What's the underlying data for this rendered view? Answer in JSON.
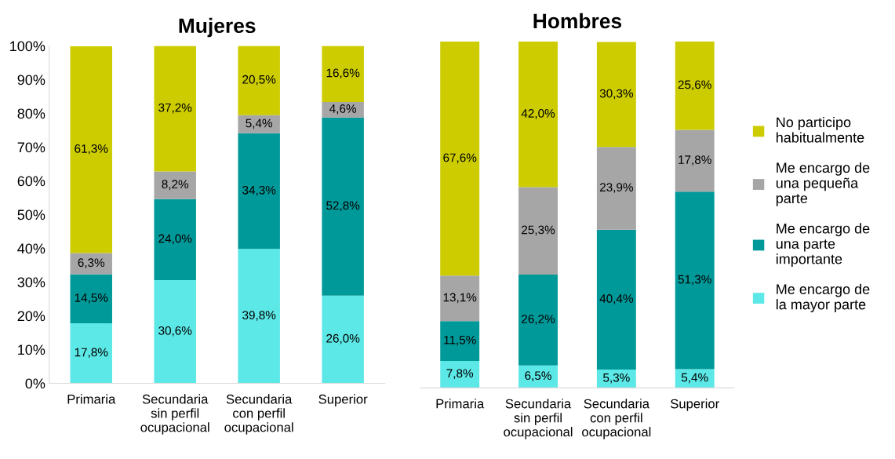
{
  "chart_data": [
    {
      "type": "bar",
      "title": "Mujeres",
      "stacked": true,
      "ylim": [
        0,
        100
      ],
      "yticks": [
        {
          "value": 0,
          "label": "0%"
        },
        {
          "value": 10,
          "label": "10%"
        },
        {
          "value": 20,
          "label": "20%"
        },
        {
          "value": 30,
          "label": "30%"
        },
        {
          "value": 40,
          "label": "40%"
        },
        {
          "value": 50,
          "label": "50%"
        },
        {
          "value": 60,
          "label": "60%"
        },
        {
          "value": 70,
          "label": "70%"
        },
        {
          "value": 80,
          "label": "80%"
        },
        {
          "value": 90,
          "label": "90%"
        },
        {
          "value": 100,
          "label": "100%"
        }
      ],
      "categories": [
        "Primaria",
        "Secundaria\nsin perfil\nocupacional",
        "Secundaria\ncon perfil\nocupacional",
        "Superior"
      ],
      "series": [
        {
          "color": "#5ce8e6",
          "values": [
            17.8,
            30.6,
            39.8,
            26.0
          ],
          "value_labels": [
            "17,8%",
            "30,6%",
            "39,8%",
            "26,0%"
          ]
        },
        {
          "color": "#009999",
          "values": [
            14.5,
            24.0,
            34.3,
            52.8
          ],
          "value_labels": [
            "14,5%",
            "24,0%",
            "34,3%",
            "52,8%"
          ]
        },
        {
          "color": "#a6a6a6",
          "values": [
            6.3,
            8.2,
            5.4,
            4.6
          ],
          "value_labels": [
            "6,3%",
            "8,2%",
            "5,4%",
            "4,6%"
          ]
        },
        {
          "color": "#cccc00",
          "values": [
            61.3,
            37.2,
            20.5,
            16.6
          ],
          "value_labels": [
            "61,3%",
            "37,2%",
            "20,5%",
            "16,6%"
          ]
        }
      ]
    },
    {
      "type": "bar",
      "title": "Hombres",
      "stacked": true,
      "tick_labels": "x",
      "legend": "right",
      "categories": [
        "Primaria",
        "Secundaria\nsin perfil\nocupacional",
        "Secundaria\ncon perfil\nocupacional",
        "Superior"
      ],
      "series": [
        {
          "name": "Me encargo de\nla mayor parte",
          "color": "#5ce8e6",
          "values": [
            7.8,
            6.5,
            5.3,
            5.4
          ],
          "value_labels": [
            "7,8%",
            "6,5%",
            "5,3%",
            "5,4%"
          ]
        },
        {
          "name": "Me encargo de\nuna parte\nimportante",
          "color": "#009999",
          "values": [
            11.5,
            26.2,
            40.4,
            51.3
          ],
          "value_labels": [
            "11,5%",
            "26,2%",
            "40,4%",
            "51,3%"
          ]
        },
        {
          "name": "Me encargo de\nuna pequeña\nparte",
          "color": "#a6a6a6",
          "values": [
            13.1,
            25.3,
            23.9,
            17.8
          ],
          "value_labels": [
            "13,1%",
            "25,3%",
            "23,9%",
            "17,8%"
          ]
        },
        {
          "name": "No participo\nhabitualmente",
          "color": "#cccc00",
          "values": [
            67.6,
            42.0,
            30.3,
            25.6
          ],
          "value_labels": [
            "67,6%",
            "42,0%",
            "30,3%",
            "25,6%"
          ]
        }
      ]
    }
  ]
}
